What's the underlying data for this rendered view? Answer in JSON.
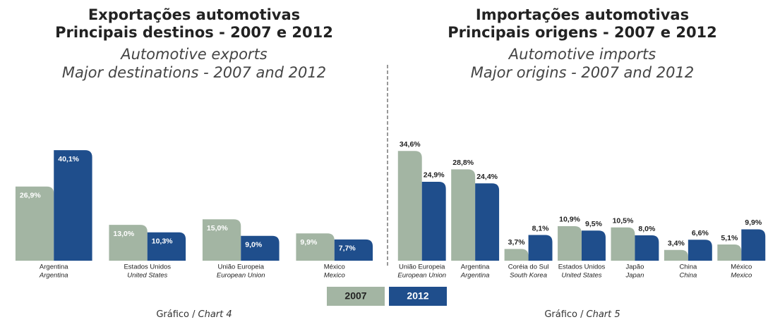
{
  "chart_data": [
    {
      "type": "bar",
      "title": [
        "Exportações automotivas",
        "Principais destinos - 2007 e 2012"
      ],
      "subtitle": [
        "Automotive exports",
        "Major destinations - 2007 and 2012"
      ],
      "caption": [
        "Gráfico /",
        "Chart 4"
      ],
      "categories": [
        "Argentina",
        "Estados Unidos",
        "União Europeia",
        "México"
      ],
      "category_translations": [
        "Argentina",
        "United States",
        "European Union",
        "Mexico"
      ],
      "series": [
        {
          "name": "2007",
          "color": "#a3b5a3",
          "values": [
            26.9,
            13.0,
            15.0,
            9.9
          ],
          "value_labels": [
            "26,9%",
            "13,0%",
            "15,0%",
            "9,9%"
          ]
        },
        {
          "name": "2012",
          "color": "#1f4e8c",
          "values": [
            40.1,
            10.3,
            9.0,
            7.7
          ],
          "value_labels": [
            "40,1%",
            "10,3%",
            "9,0%",
            "7,7%"
          ]
        }
      ],
      "ylim": [
        0,
        46
      ],
      "label_position": "inside"
    },
    {
      "type": "bar",
      "title": [
        "Importações automotivas",
        "Principais origens - 2007 e 2012"
      ],
      "subtitle": [
        "Automotive imports",
        "Major origins - 2007 and 2012"
      ],
      "caption": [
        "Gráfico /",
        "Chart 5"
      ],
      "categories": [
        "União Europeia",
        "Argentina",
        "Coréia do Sul",
        "Estados Unidos",
        "Japão",
        "China",
        "México"
      ],
      "category_translations": [
        "European Union",
        "Argentina",
        "South Korea",
        "United States",
        "Japan",
        "China",
        "Mexico"
      ],
      "series": [
        {
          "color": "#a3b5a3",
          "values": [
            34.6,
            28.8,
            3.7,
            10.9,
            10.5,
            3.4,
            5.1
          ],
          "value_labels": [
            "34,6%",
            "28,8%",
            "3,7%",
            "10,9%",
            "10,5%",
            "3,4%",
            "5,1%"
          ]
        },
        {
          "color": "#1f4e8c",
          "values": [
            24.9,
            24.4,
            8.1,
            9.5,
            8.0,
            6.6,
            9.9
          ],
          "value_labels": [
            "24,9%",
            "24,4%",
            "8,1%",
            "9,5%",
            "8,0%",
            "6,6%",
            "9,9%"
          ]
        }
      ],
      "ylim": [
        0,
        40
      ],
      "label_position": "above"
    }
  ]
}
